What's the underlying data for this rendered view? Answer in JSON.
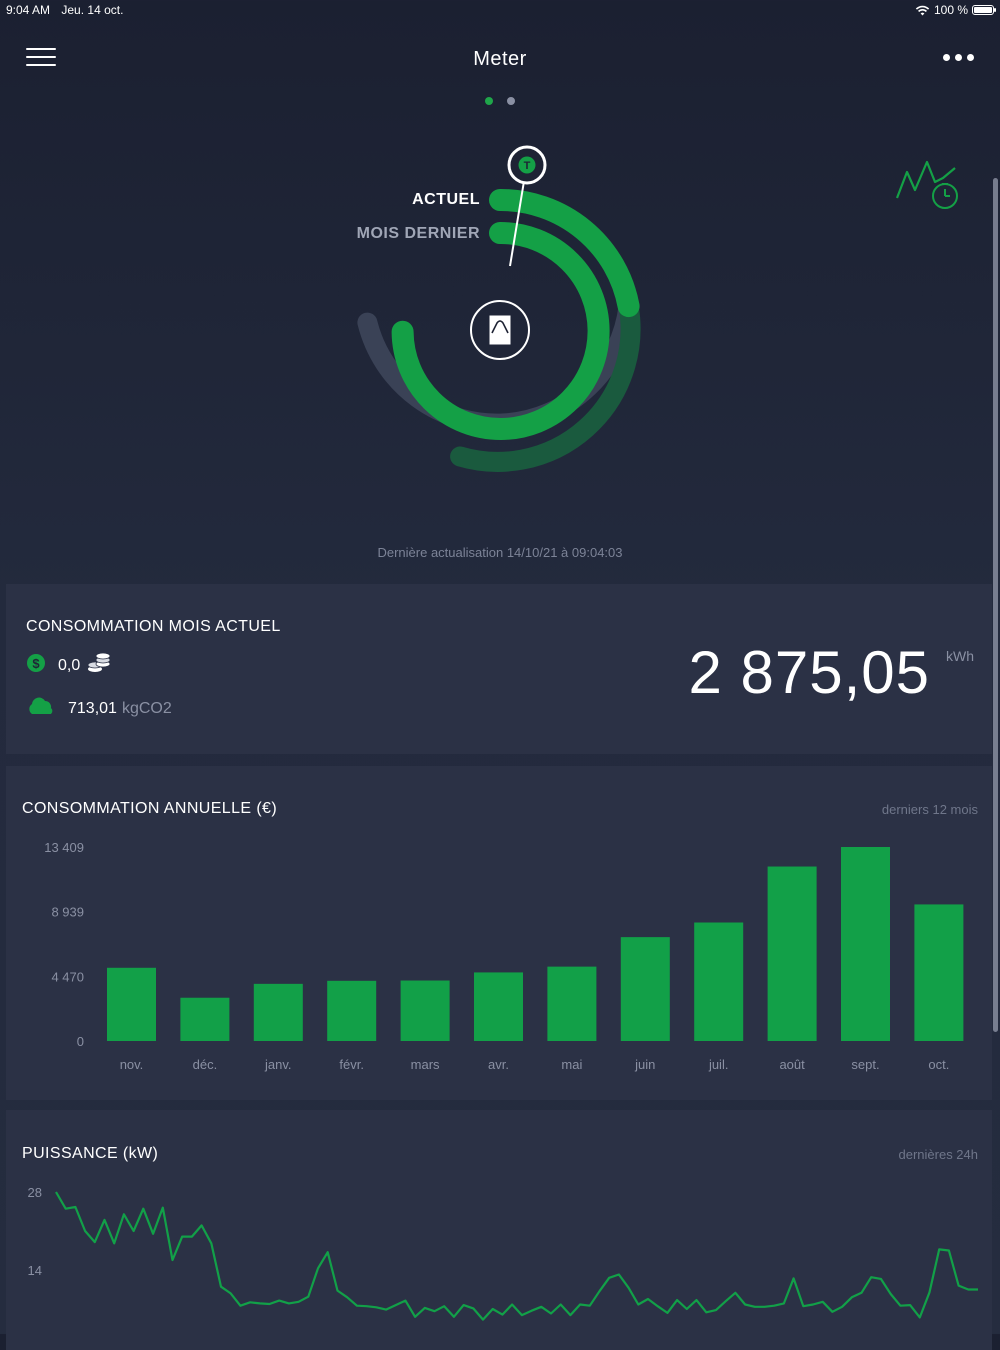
{
  "status_bar": {
    "time": "9:04 AM",
    "date": "Jeu. 14 oct.",
    "battery": "100 %"
  },
  "header": {
    "title": "Meter"
  },
  "pager": {
    "active_color": "#1fa64a",
    "inactive_color": "#8a90a3"
  },
  "gauge": {
    "label_current": "ACTUEL",
    "label_previous": "MOIS DERNIER",
    "marker_letter": "T",
    "accent_color": "#14a046",
    "track_color": "#3a4256",
    "icon": "meter-icon"
  },
  "last_update": "Dernière actualisation 14/10/21 à 09:04:03",
  "current_month": {
    "title": "CONSOMMATION MOIS ACTUEL",
    "cost": "0,0",
    "co2_value": "713,01",
    "co2_unit": "kgCO2",
    "consumption": "2 875,05",
    "unit": "kWh"
  },
  "annual": {
    "title": "CONSOMMATION ANNUELLE (€)",
    "period": "derniers 12 mois"
  },
  "power": {
    "title": "PUISSANCE (kW)",
    "period": "dernières 24h"
  },
  "chart_data": [
    {
      "type": "bar",
      "title": "CONSOMMATION ANNUELLE (€)",
      "categories": [
        "nov.",
        "déc.",
        "janv.",
        "févr.",
        "mars",
        "avr.",
        "mai",
        "juin",
        "juil.",
        "août",
        "sept.",
        "oct."
      ],
      "values": [
        5060,
        2990,
        3950,
        4160,
        4180,
        4740,
        5140,
        7180,
        8190,
        12060,
        13409,
        9440
      ],
      "yticks": [
        0,
        4470,
        8939,
        13409
      ],
      "ytick_labels": [
        "0",
        "4 470",
        "8 939",
        "13 409"
      ],
      "ylim": [
        0,
        13409
      ],
      "grid": false,
      "color": "#12a048"
    },
    {
      "type": "line",
      "title": "PUISSANCE (kW)",
      "yticks": [
        14,
        28
      ],
      "ytick_labels": [
        "14",
        "28"
      ],
      "ylim": [
        0,
        28
      ],
      "grid": false,
      "color": "#12a048",
      "values": [
        28,
        25,
        25.3,
        21,
        19,
        23,
        18.8,
        24,
        21,
        25,
        20.5,
        25.2,
        15.8,
        20,
        20,
        22,
        18.8,
        11,
        9.8,
        7.6,
        8.2,
        8,
        7.9,
        8.5,
        8,
        8.3,
        9.2,
        14.3,
        17.2,
        10.3,
        9.1,
        7.6,
        7.5,
        7.3,
        6.9,
        7.7,
        8.5,
        5.6,
        7.2,
        6.6,
        7.5,
        5.6,
        7.7,
        7.1,
        5.1,
        7,
        6,
        7.8,
        5.9,
        6.7,
        7.4,
        6.2,
        7.8,
        5.9,
        7.8,
        7.6,
        10.2,
        12.6,
        13.2,
        10.8,
        7.8,
        8.8,
        7.5,
        6.3,
        8.6,
        7,
        8.6,
        6.4,
        6.8,
        8.4,
        9.9,
        7.8,
        7.4,
        7.4,
        7.6,
        8,
        12.5,
        7.5,
        7.8,
        8.3,
        6.5,
        7.4,
        9.1,
        9.9,
        12.7,
        12.4,
        9.7,
        7.6,
        7.7,
        5.5,
        10,
        17.7,
        17.5,
        11.2,
        10.5,
        10.5
      ]
    }
  ]
}
